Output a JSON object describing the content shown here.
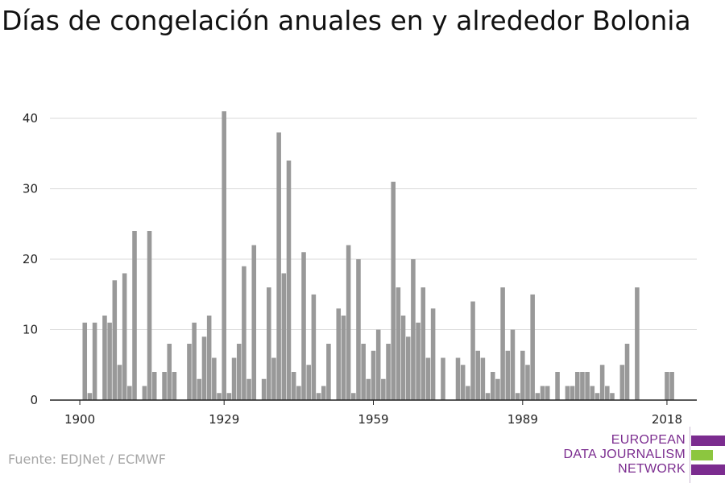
{
  "header": {
    "title": "Días de congelación anuales en y alrededor Bolonia"
  },
  "footer": {
    "source": "Fuente: EDJNet / ECMWF"
  },
  "logo": {
    "lines": [
      "EUROPEAN",
      "DATA JOURNALISM",
      "NETWORK"
    ],
    "colors": {
      "purple": "#7b2c8f",
      "green": "#8cc63f"
    }
  },
  "chart_data": {
    "type": "bar",
    "title": "Días de congelación anuales en y alrededor Bolonia",
    "xlabel": "",
    "ylabel": "",
    "ylim": [
      0,
      40
    ],
    "yticks": [
      0,
      10,
      20,
      30,
      40
    ],
    "xticks": [
      1900,
      1929,
      1959,
      1989,
      2018
    ],
    "xlim": [
      1894,
      2024
    ],
    "grid": true,
    "bar_color": "#999999",
    "x": [
      1901,
      1902,
      1903,
      1904,
      1905,
      1906,
      1907,
      1908,
      1909,
      1910,
      1911,
      1912,
      1913,
      1914,
      1915,
      1916,
      1917,
      1918,
      1919,
      1920,
      1921,
      1922,
      1923,
      1924,
      1925,
      1926,
      1927,
      1928,
      1929,
      1930,
      1931,
      1932,
      1933,
      1934,
      1935,
      1936,
      1937,
      1938,
      1939,
      1940,
      1941,
      1942,
      1943,
      1944,
      1945,
      1946,
      1947,
      1948,
      1949,
      1950,
      1951,
      1952,
      1953,
      1954,
      1955,
      1956,
      1957,
      1958,
      1959,
      1960,
      1961,
      1962,
      1963,
      1964,
      1965,
      1966,
      1967,
      1968,
      1969,
      1970,
      1971,
      1972,
      1973,
      1974,
      1975,
      1976,
      1977,
      1978,
      1979,
      1980,
      1981,
      1982,
      1983,
      1984,
      1985,
      1986,
      1987,
      1988,
      1989,
      1990,
      1991,
      1992,
      1993,
      1994,
      1995,
      1996,
      1997,
      1998,
      1999,
      2000,
      2001,
      2002,
      2003,
      2004,
      2005,
      2006,
      2007,
      2008,
      2009,
      2010,
      2011,
      2012,
      2013,
      2014,
      2015,
      2016,
      2017,
      2018,
      2019
    ],
    "values": [
      11,
      1,
      11,
      0,
      12,
      11,
      17,
      5,
      18,
      2,
      24,
      0,
      2,
      24,
      4,
      0,
      4,
      8,
      4,
      0,
      0,
      8,
      11,
      3,
      9,
      12,
      6,
      1,
      41,
      1,
      6,
      8,
      19,
      3,
      22,
      0,
      3,
      16,
      6,
      38,
      18,
      34,
      4,
      2,
      21,
      5,
      15,
      1,
      2,
      8,
      0,
      13,
      12,
      22,
      1,
      20,
      8,
      3,
      7,
      10,
      3,
      8,
      31,
      16,
      12,
      9,
      20,
      11,
      16,
      6,
      13,
      0,
      6,
      0,
      0,
      6,
      5,
      2,
      14,
      7,
      6,
      1,
      4,
      3,
      16,
      7,
      10,
      1,
      7,
      5,
      15,
      1,
      2,
      2,
      0,
      4,
      0,
      2,
      2,
      4,
      4,
      4,
      2,
      1,
      5,
      2,
      1,
      0,
      5,
      8,
      0,
      16,
      0,
      0,
      0,
      0,
      0,
      4,
      4
    ]
  }
}
